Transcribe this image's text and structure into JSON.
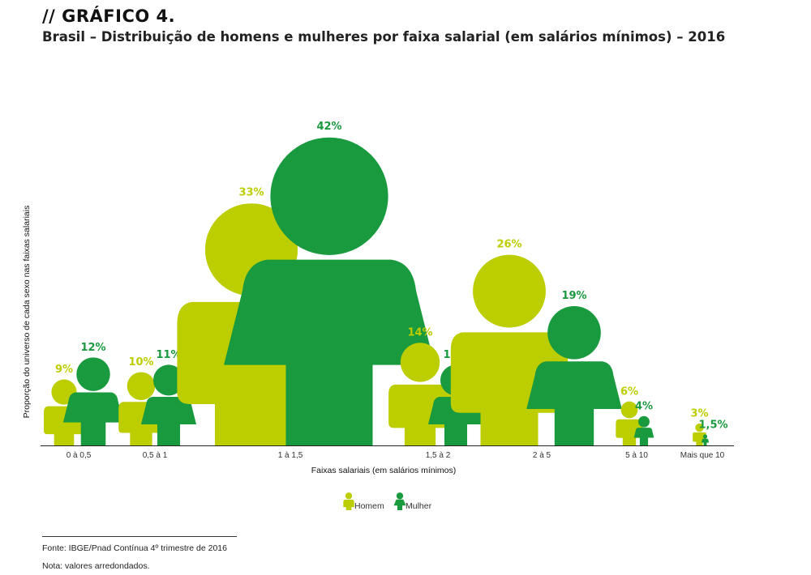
{
  "heading": {
    "label": "// GRÁFICO 4.",
    "subtitle": "Brasil – Distribuição de homens e mulheres por faixa salarial (em salários mínimos) – 2016"
  },
  "colors": {
    "homem": "#bccd00",
    "mulher": "#1a9a3e"
  },
  "chart_data": {
    "type": "bar",
    "title": "Brasil – Distribuição de homens e mulheres por faixa salarial (em salários mínimos) – 2016",
    "xlabel": "Faixas salariais (em salários mínimos)",
    "ylabel": "Proporção do universo de cada sexo nas faixas salariais",
    "categories": [
      "0 à 0,5",
      "0,5 à 1",
      "1 à 1,5",
      "1,5 à 2",
      "2 à 5",
      "5 à 10",
      "Mais que 10"
    ],
    "series": [
      {
        "name": "Homem",
        "values": [
          9,
          10,
          33,
          14,
          26,
          6,
          3
        ],
        "labels": [
          "9%",
          "10%",
          "33%",
          "14%",
          "26%",
          "6%",
          "3%"
        ]
      },
      {
        "name": "Mulher",
        "values": [
          12,
          11,
          42,
          11,
          19,
          4,
          1.5
        ],
        "labels": [
          "12%",
          "11%",
          "42%",
          "11%",
          "19%",
          "4%",
          "1,5%"
        ]
      }
    ],
    "legend": "bottom-center"
  },
  "legend": {
    "homem": "Homem",
    "mulher": "Mulher"
  },
  "footer": {
    "source": "Fonte: IBGE/Pnad Contínua 4º trimestre de 2016",
    "note": "Nota: valores arredondados."
  }
}
